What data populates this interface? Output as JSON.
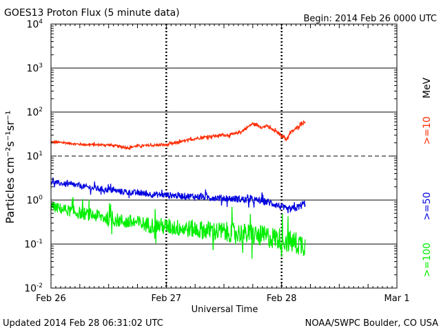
{
  "header": {
    "title": "GOES13 Proton Flux (5 minute data)",
    "begin": "Begin: 2014 Feb 26 0000 UTC"
  },
  "footer": {
    "updated": "Updated 2014 Feb 28 06:31:02 UTC",
    "source": "NOAA/SWPC Boulder, CO USA"
  },
  "chart_data": {
    "type": "line",
    "title": "GOES13 Proton Flux (5 minute data)",
    "xlabel": "Universal Time",
    "ylabel": "Particles cm⁻²s⁻¹sr⁻¹",
    "yscale": "log",
    "ylim": [
      0.01,
      10000
    ],
    "xlim_hours": [
      0,
      72
    ],
    "x_ticks": [
      {
        "h": 0,
        "label": "Feb 26"
      },
      {
        "h": 24,
        "label": "Feb 27"
      },
      {
        "h": 48,
        "label": "Feb 28"
      },
      {
        "h": 72,
        "label": "Mar 1"
      }
    ],
    "y_ticks": [
      {
        "base": "10",
        "exp": "-2"
      },
      {
        "base": "10",
        "exp": "-1"
      },
      {
        "base": "10",
        "exp": "0"
      },
      {
        "base": "10",
        "exp": "1"
      },
      {
        "base": "10",
        "exp": "2"
      },
      {
        "base": "10",
        "exp": "3"
      },
      {
        "base": "10",
        "exp": "4"
      }
    ],
    "energy_unit": "MeV",
    "series": [
      {
        "name": ">=10",
        "color": "#ff2a00",
        "x": [
          0,
          3,
          6,
          9,
          12,
          15,
          16,
          18,
          21,
          24,
          27,
          30,
          33,
          36,
          38,
          40,
          42,
          43,
          44,
          45,
          46,
          47,
          48,
          49,
          50,
          51,
          52,
          53
        ],
        "y": [
          21,
          20,
          18.5,
          18,
          18,
          16,
          15.5,
          17,
          17.5,
          18,
          21,
          25,
          28,
          30,
          31,
          38,
          55,
          50,
          45,
          48,
          40,
          35,
          30,
          24,
          35,
          42,
          55,
          60
        ]
      },
      {
        "name": ">=50",
        "color": "#0000e0",
        "x": [
          0,
          3,
          6,
          9,
          12,
          15,
          18,
          21,
          24,
          27,
          30,
          33,
          36,
          39,
          42,
          44,
          46,
          48,
          49,
          50,
          51,
          52,
          53
        ],
        "y": [
          2.6,
          2.3,
          2.1,
          1.85,
          1.7,
          1.55,
          1.45,
          1.35,
          1.3,
          1.25,
          1.2,
          1.15,
          1.1,
          1.05,
          1.0,
          0.95,
          0.85,
          0.7,
          0.6,
          0.62,
          0.65,
          0.75,
          0.85
        ]
      },
      {
        "name": ">=100",
        "color": "#00ee00",
        "x": [
          0,
          3,
          6,
          9,
          12,
          15,
          18,
          21,
          24,
          27,
          30,
          33,
          36,
          39,
          42,
          44,
          46,
          48,
          50,
          52,
          53
        ],
        "y": [
          0.72,
          0.6,
          0.5,
          0.45,
          0.38,
          0.33,
          0.3,
          0.27,
          0.25,
          0.23,
          0.22,
          0.2,
          0.19,
          0.18,
          0.16,
          0.15,
          0.14,
          0.13,
          0.11,
          0.1,
          0.1
        ]
      }
    ]
  }
}
